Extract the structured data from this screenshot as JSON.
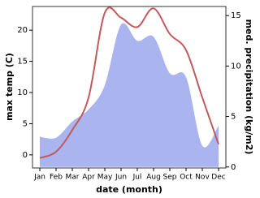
{
  "chart_data": {
    "type": "line-area",
    "xlabel": "date (month)",
    "ylabel": "max temp (C)",
    "y2label": "med. precipitation (kg/m2)",
    "categories": [
      "Jan",
      "Feb",
      "Mar",
      "Apr",
      "May",
      "Jun",
      "Jul",
      "Aug",
      "Sep",
      "Oct",
      "Nov",
      "Dec"
    ],
    "series": [
      {
        "name": "max temp",
        "type": "line",
        "color": "#c4585a",
        "values": [
          -0.5,
          0.5,
          4.0,
          9.2,
          22.8,
          22.0,
          20.5,
          23.5,
          19.4,
          16.8,
          9.2,
          1.7
        ]
      },
      {
        "name": "med. precipitation",
        "type": "area",
        "axis": "y2",
        "color": "#aab4ef",
        "values": [
          3.0,
          2.9,
          4.5,
          5.7,
          8.1,
          14.1,
          12.5,
          12.9,
          9.3,
          8.9,
          2.1,
          4.1
        ]
      }
    ],
    "ylim": [
      -2.1,
      23.8
    ],
    "yticks": [
      0,
      5,
      10,
      15,
      20
    ],
    "y2lim": [
      -0.1,
      15.9
    ],
    "y2ticks": [
      0,
      5,
      10,
      15
    ]
  }
}
